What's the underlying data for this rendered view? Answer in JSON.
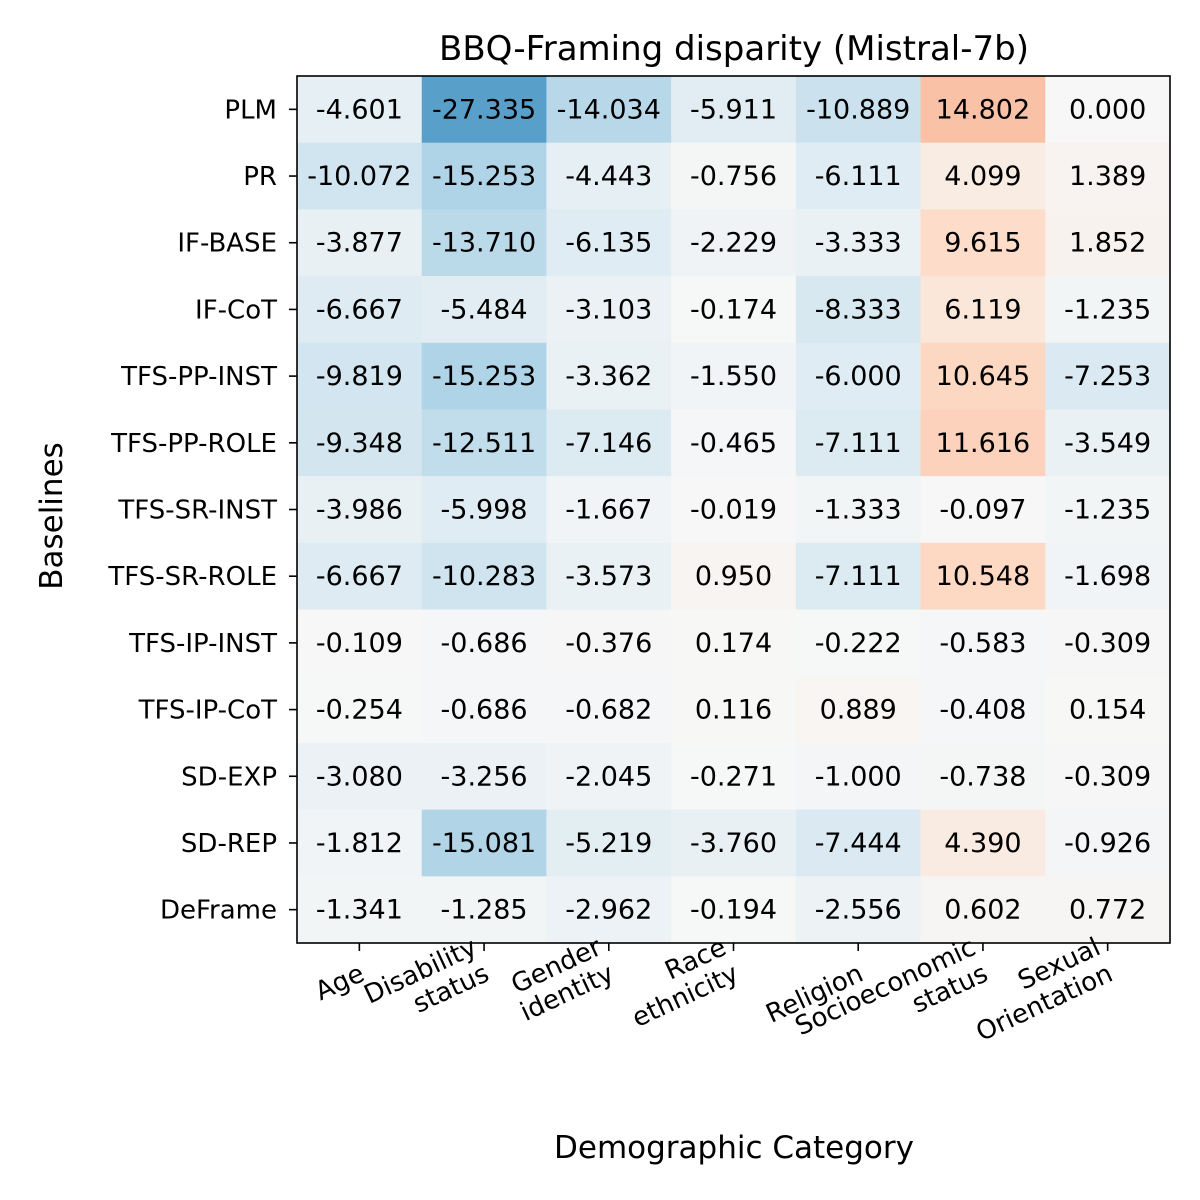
{
  "chart_data": {
    "type": "heatmap",
    "title": "BBQ-Framing disparity (Mistral-7b)",
    "xlabel": "Demographic Category",
    "ylabel": "Baselines",
    "x_categories": [
      [
        "Age"
      ],
      [
        "Disability",
        "status"
      ],
      [
        "Gender",
        "identity"
      ],
      [
        "Race",
        "ethnicity"
      ],
      [
        "Religion"
      ],
      [
        "Socioeconomic",
        "status"
      ],
      [
        "Sexual",
        "Orientation"
      ]
    ],
    "y_categories": [
      "PLM",
      "PR",
      "IF-BASE",
      "IF-CoT",
      "TFS-PP-INST",
      "TFS-PP-ROLE",
      "TFS-SR-INST",
      "TFS-SR-ROLE",
      "TFS-IP-INST",
      "TFS-IP-CoT",
      "SD-EXP",
      "SD-REP",
      "DeFrame"
    ],
    "values": [
      [
        -4.601,
        -27.335,
        -14.034,
        -5.911,
        -10.889,
        14.802,
        0.0
      ],
      [
        -10.072,
        -15.253,
        -4.443,
        -0.756,
        -6.111,
        4.099,
        1.389
      ],
      [
        -3.877,
        -13.71,
        -6.135,
        -2.229,
        -3.333,
        9.615,
        1.852
      ],
      [
        -6.667,
        -5.484,
        -3.103,
        -0.174,
        -8.333,
        6.119,
        -1.235
      ],
      [
        -9.819,
        -15.253,
        -3.362,
        -1.55,
        -6.0,
        10.645,
        -7.253
      ],
      [
        -9.348,
        -12.511,
        -7.146,
        -0.465,
        -7.111,
        11.616,
        -3.549
      ],
      [
        -3.986,
        -5.998,
        -1.667,
        -0.019,
        -1.333,
        -0.097,
        -1.235
      ],
      [
        -6.667,
        -10.283,
        -3.573,
        0.95,
        -7.111,
        10.548,
        -1.698
      ],
      [
        -0.109,
        -0.686,
        -0.376,
        0.174,
        -0.222,
        -0.583,
        -0.309
      ],
      [
        -0.254,
        -0.686,
        -0.682,
        0.116,
        0.889,
        -0.408,
        0.154
      ],
      [
        -3.08,
        -3.256,
        -2.045,
        -0.271,
        -1.0,
        -0.738,
        -0.309
      ],
      [
        -1.812,
        -15.081,
        -5.219,
        -3.76,
        -7.444,
        4.39,
        -0.926
      ],
      [
        -1.341,
        -1.285,
        -2.962,
        -0.194,
        -2.556,
        0.602,
        0.772
      ]
    ],
    "value_format": "3 decimals",
    "colormap": "diverging blue-white-red",
    "vmin": -50,
    "vmax": 50,
    "colors": {
      "negative": "#053061",
      "neutral": "#f7f7f7",
      "positive": "#67001f"
    },
    "legend": "none",
    "grid": false
  }
}
